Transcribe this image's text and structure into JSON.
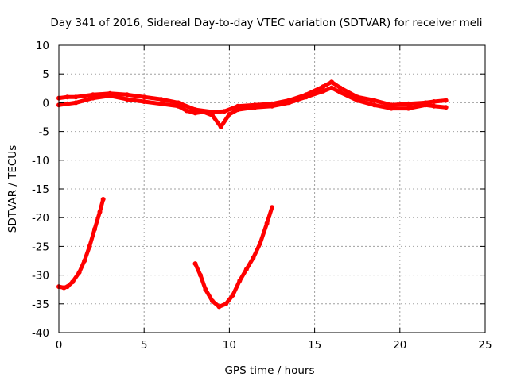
{
  "chart_data": {
    "type": "scatter",
    "title": "Day 341 of 2016, Sidereal Day-to-day VTEC variation (SDTVAR) for receiver meli",
    "xlabel": "GPS time / hours",
    "ylabel": "SDTVAR / TECUs",
    "xlim": [
      0,
      25
    ],
    "ylim": [
      -40,
      10
    ],
    "xticks": [
      0,
      5,
      10,
      15,
      20,
      25
    ],
    "yticks": [
      -40,
      -35,
      -30,
      -25,
      -20,
      -15,
      -10,
      -5,
      0,
      5,
      10
    ],
    "grid": true,
    "series_color": "#ff0000",
    "series": [
      {
        "name": "main band (upper trace)",
        "points": [
          [
            0.0,
            0.8
          ],
          [
            0.5,
            1.0
          ],
          [
            1.0,
            1.0
          ],
          [
            2.0,
            1.4
          ],
          [
            3.0,
            1.6
          ],
          [
            4.0,
            1.4
          ],
          [
            5.0,
            1.0
          ],
          [
            6.0,
            0.6
          ],
          [
            7.0,
            0.0
          ],
          [
            8.0,
            -1.2
          ],
          [
            9.0,
            -1.6
          ],
          [
            9.7,
            -1.5
          ],
          [
            10.5,
            -0.6
          ],
          [
            11.5,
            -0.4
          ],
          [
            12.5,
            -0.2
          ],
          [
            13.5,
            0.4
          ],
          [
            14.5,
            1.4
          ],
          [
            15.5,
            2.8
          ],
          [
            16.0,
            3.6
          ],
          [
            16.5,
            2.6
          ],
          [
            17.5,
            1.0
          ],
          [
            18.5,
            0.4
          ],
          [
            19.5,
            -0.4
          ],
          [
            20.5,
            -0.2
          ],
          [
            21.5,
            0.0
          ],
          [
            22.0,
            0.2
          ],
          [
            22.7,
            0.4
          ]
        ]
      },
      {
        "name": "main band (lower trace)",
        "points": [
          [
            0.0,
            -0.4
          ],
          [
            0.5,
            -0.2
          ],
          [
            1.0,
            0.0
          ],
          [
            2.0,
            0.8
          ],
          [
            3.0,
            1.2
          ],
          [
            4.0,
            0.6
          ],
          [
            5.0,
            0.2
          ],
          [
            6.0,
            -0.2
          ],
          [
            7.0,
            -0.6
          ],
          [
            7.5,
            -1.4
          ],
          [
            8.0,
            -1.8
          ],
          [
            8.5,
            -1.6
          ],
          [
            9.0,
            -2.2
          ],
          [
            9.5,
            -4.2
          ],
          [
            10.0,
            -2.0
          ],
          [
            10.5,
            -1.2
          ],
          [
            11.5,
            -0.8
          ],
          [
            12.5,
            -0.6
          ],
          [
            13.5,
            0.0
          ],
          [
            14.5,
            1.0
          ],
          [
            15.5,
            2.0
          ],
          [
            16.0,
            2.6
          ],
          [
            16.5,
            1.8
          ],
          [
            17.5,
            0.4
          ],
          [
            18.5,
            -0.4
          ],
          [
            19.5,
            -1.0
          ],
          [
            20.5,
            -1.0
          ],
          [
            21.5,
            -0.4
          ],
          [
            22.0,
            -0.6
          ],
          [
            22.7,
            -0.8
          ]
        ]
      },
      {
        "name": "arc 1",
        "points": [
          [
            0.0,
            -32.0
          ],
          [
            0.3,
            -32.2
          ],
          [
            0.5,
            -32.0
          ],
          [
            0.8,
            -31.2
          ],
          [
            1.2,
            -29.5
          ],
          [
            1.5,
            -27.5
          ],
          [
            1.8,
            -25.0
          ],
          [
            2.1,
            -22.0
          ],
          [
            2.4,
            -19.0
          ],
          [
            2.6,
            -16.8
          ]
        ]
      },
      {
        "name": "arc 2",
        "points": [
          [
            8.0,
            -28.0
          ],
          [
            8.3,
            -30.0
          ],
          [
            8.6,
            -32.5
          ],
          [
            9.0,
            -34.5
          ],
          [
            9.4,
            -35.5
          ],
          [
            9.8,
            -35.0
          ],
          [
            10.2,
            -33.5
          ],
          [
            10.6,
            -31.0
          ],
          [
            11.0,
            -29.0
          ],
          [
            11.4,
            -27.0
          ],
          [
            11.8,
            -24.5
          ],
          [
            12.2,
            -21.0
          ],
          [
            12.5,
            -18.2
          ]
        ]
      }
    ]
  }
}
